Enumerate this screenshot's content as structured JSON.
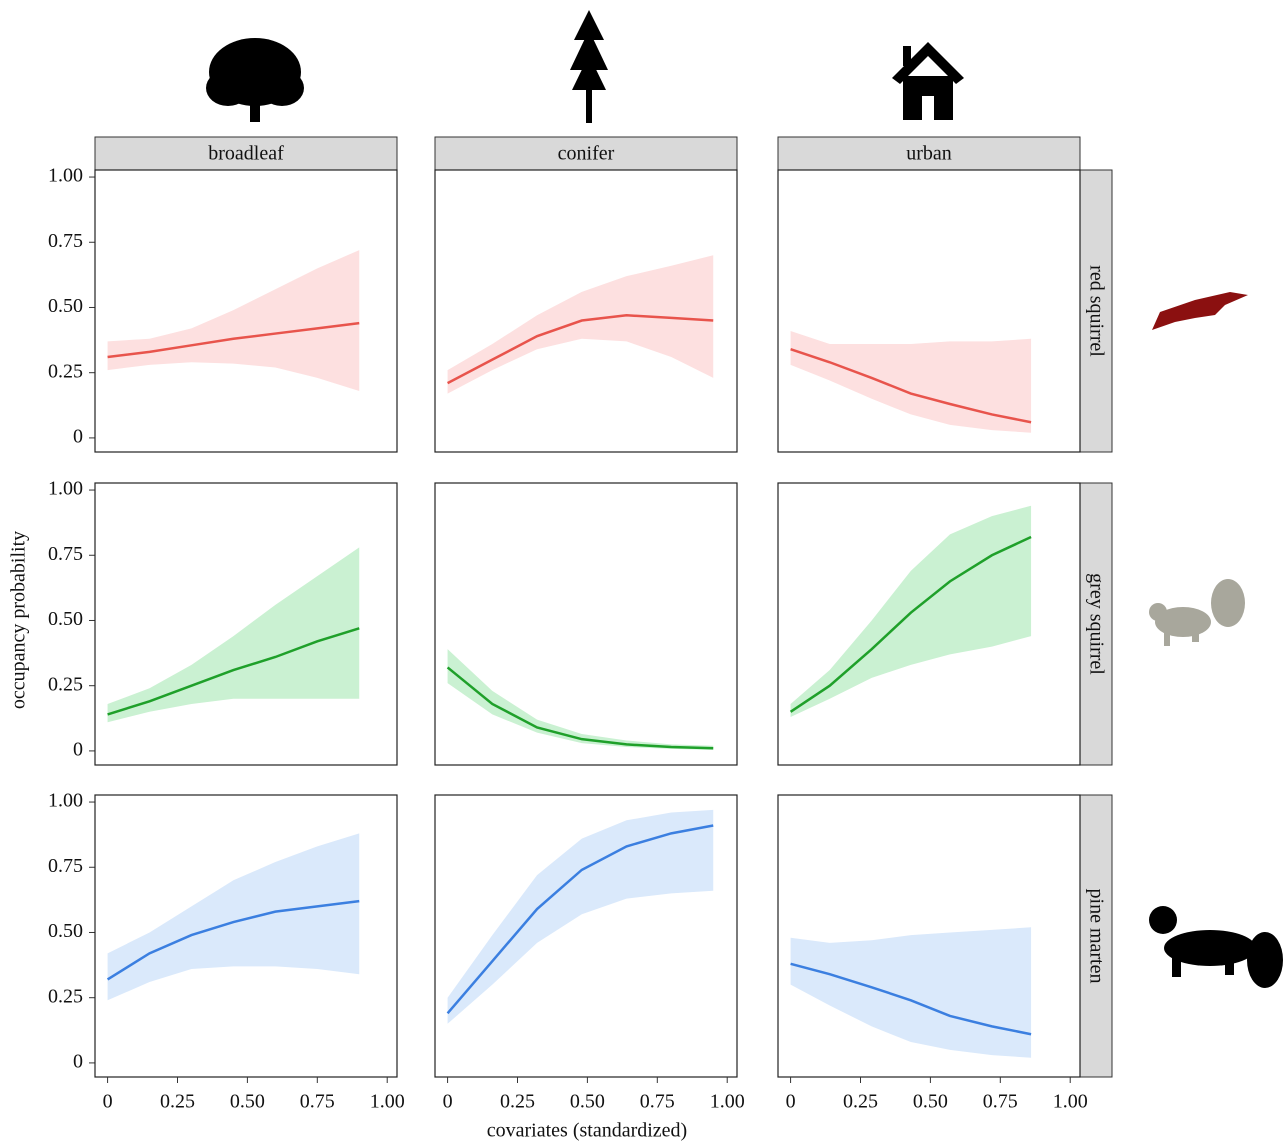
{
  "chart_data": {
    "type": "line",
    "x_label": "covariates (standardized)",
    "y_label": "occupancy probability",
    "columns": [
      "broadleaf",
      "conifer",
      "urban"
    ],
    "xlim": [
      -0.045,
      1.035
    ],
    "ylim": [
      -0.054,
      1.027
    ],
    "xticks": [
      0,
      0.25,
      {
        "value": 0.5,
        "label": "0.50"
      },
      0.75,
      {
        "value": 1,
        "label": "1.00"
      }
    ],
    "yticks": [
      0,
      0.25,
      {
        "value": 0.5,
        "label": "0.50"
      },
      0.75,
      {
        "value": 1,
        "label": "1.00"
      }
    ],
    "rows": [
      {
        "name": "red squirrel",
        "color": "#e8544c",
        "band_color": "#fde0e0",
        "panels": [
          {
            "x": [
              0,
              0.15,
              0.3,
              0.45,
              0.6,
              0.75,
              0.9
            ],
            "values": [
              0.31,
              0.33,
              0.355,
              0.38,
              0.4,
              0.42,
              0.44
            ],
            "lower": [
              0.26,
              0.28,
              0.29,
              0.285,
              0.27,
              0.23,
              0.18
            ],
            "upper": [
              0.37,
              0.38,
              0.42,
              0.49,
              0.57,
              0.65,
              0.72
            ]
          },
          {
            "x": [
              0,
              0.16,
              0.32,
              0.48,
              0.64,
              0.8,
              0.95
            ],
            "values": [
              0.21,
              0.3,
              0.39,
              0.45,
              0.47,
              0.46,
              0.45
            ],
            "lower": [
              0.17,
              0.26,
              0.34,
              0.38,
              0.37,
              0.31,
              0.23
            ],
            "upper": [
              0.26,
              0.36,
              0.47,
              0.56,
              0.62,
              0.66,
              0.7
            ]
          },
          {
            "x": [
              0,
              0.14,
              0.29,
              0.43,
              0.57,
              0.72,
              0.86
            ],
            "values": [
              0.34,
              0.29,
              0.23,
              0.17,
              0.13,
              0.09,
              0.06
            ],
            "lower": [
              0.28,
              0.22,
              0.15,
              0.09,
              0.05,
              0.03,
              0.02
            ],
            "upper": [
              0.41,
              0.36,
              0.36,
              0.36,
              0.37,
              0.37,
              0.38
            ]
          }
        ]
      },
      {
        "name": "grey squirrel",
        "color": "#1fa02a",
        "band_color": "#caf1d2",
        "panels": [
          {
            "x": [
              0,
              0.15,
              0.3,
              0.45,
              0.6,
              0.75,
              0.9
            ],
            "values": [
              0.14,
              0.19,
              0.25,
              0.31,
              0.36,
              0.42,
              0.47
            ],
            "lower": [
              0.11,
              0.15,
              0.18,
              0.2,
              0.2,
              0.2,
              0.2
            ],
            "upper": [
              0.18,
              0.24,
              0.33,
              0.44,
              0.56,
              0.67,
              0.78
            ]
          },
          {
            "x": [
              0,
              0.16,
              0.32,
              0.48,
              0.64,
              0.8,
              0.95
            ],
            "values": [
              0.32,
              0.18,
              0.09,
              0.045,
              0.025,
              0.015,
              0.01
            ],
            "lower": [
              0.26,
              0.14,
              0.07,
              0.03,
              0.015,
              0.008,
              0.004
            ],
            "upper": [
              0.39,
              0.23,
              0.12,
              0.065,
              0.04,
              0.025,
              0.02
            ]
          },
          {
            "x": [
              0,
              0.14,
              0.29,
              0.43,
              0.57,
              0.72,
              0.86
            ],
            "values": [
              0.15,
              0.25,
              0.39,
              0.53,
              0.65,
              0.75,
              0.82
            ],
            "lower": [
              0.13,
              0.2,
              0.28,
              0.33,
              0.37,
              0.4,
              0.44
            ],
            "upper": [
              0.18,
              0.31,
              0.5,
              0.69,
              0.83,
              0.9,
              0.94
            ]
          }
        ]
      },
      {
        "name": "pine marten",
        "color": "#3b7fe0",
        "band_color": "#dae9fb",
        "panels": [
          {
            "x": [
              0,
              0.15,
              0.3,
              0.45,
              0.6,
              0.75,
              0.9
            ],
            "values": [
              0.32,
              0.42,
              0.49,
              0.54,
              0.58,
              0.6,
              0.62
            ],
            "lower": [
              0.24,
              0.31,
              0.36,
              0.37,
              0.37,
              0.36,
              0.34
            ],
            "upper": [
              0.42,
              0.5,
              0.6,
              0.7,
              0.77,
              0.83,
              0.88
            ]
          },
          {
            "x": [
              0,
              0.16,
              0.32,
              0.48,
              0.64,
              0.8,
              0.95
            ],
            "values": [
              0.19,
              0.39,
              0.59,
              0.74,
              0.83,
              0.88,
              0.91
            ],
            "lower": [
              0.15,
              0.3,
              0.46,
              0.57,
              0.63,
              0.65,
              0.66
            ],
            "upper": [
              0.25,
              0.49,
              0.72,
              0.86,
              0.93,
              0.96,
              0.97
            ]
          },
          {
            "x": [
              0,
              0.14,
              0.29,
              0.43,
              0.57,
              0.72,
              0.86
            ],
            "values": [
              0.38,
              0.34,
              0.29,
              0.24,
              0.18,
              0.14,
              0.11
            ],
            "lower": [
              0.3,
              0.22,
              0.14,
              0.08,
              0.05,
              0.03,
              0.02
            ],
            "upper": [
              0.48,
              0.46,
              0.47,
              0.49,
              0.5,
              0.51,
              0.52
            ]
          }
        ]
      }
    ]
  }
}
